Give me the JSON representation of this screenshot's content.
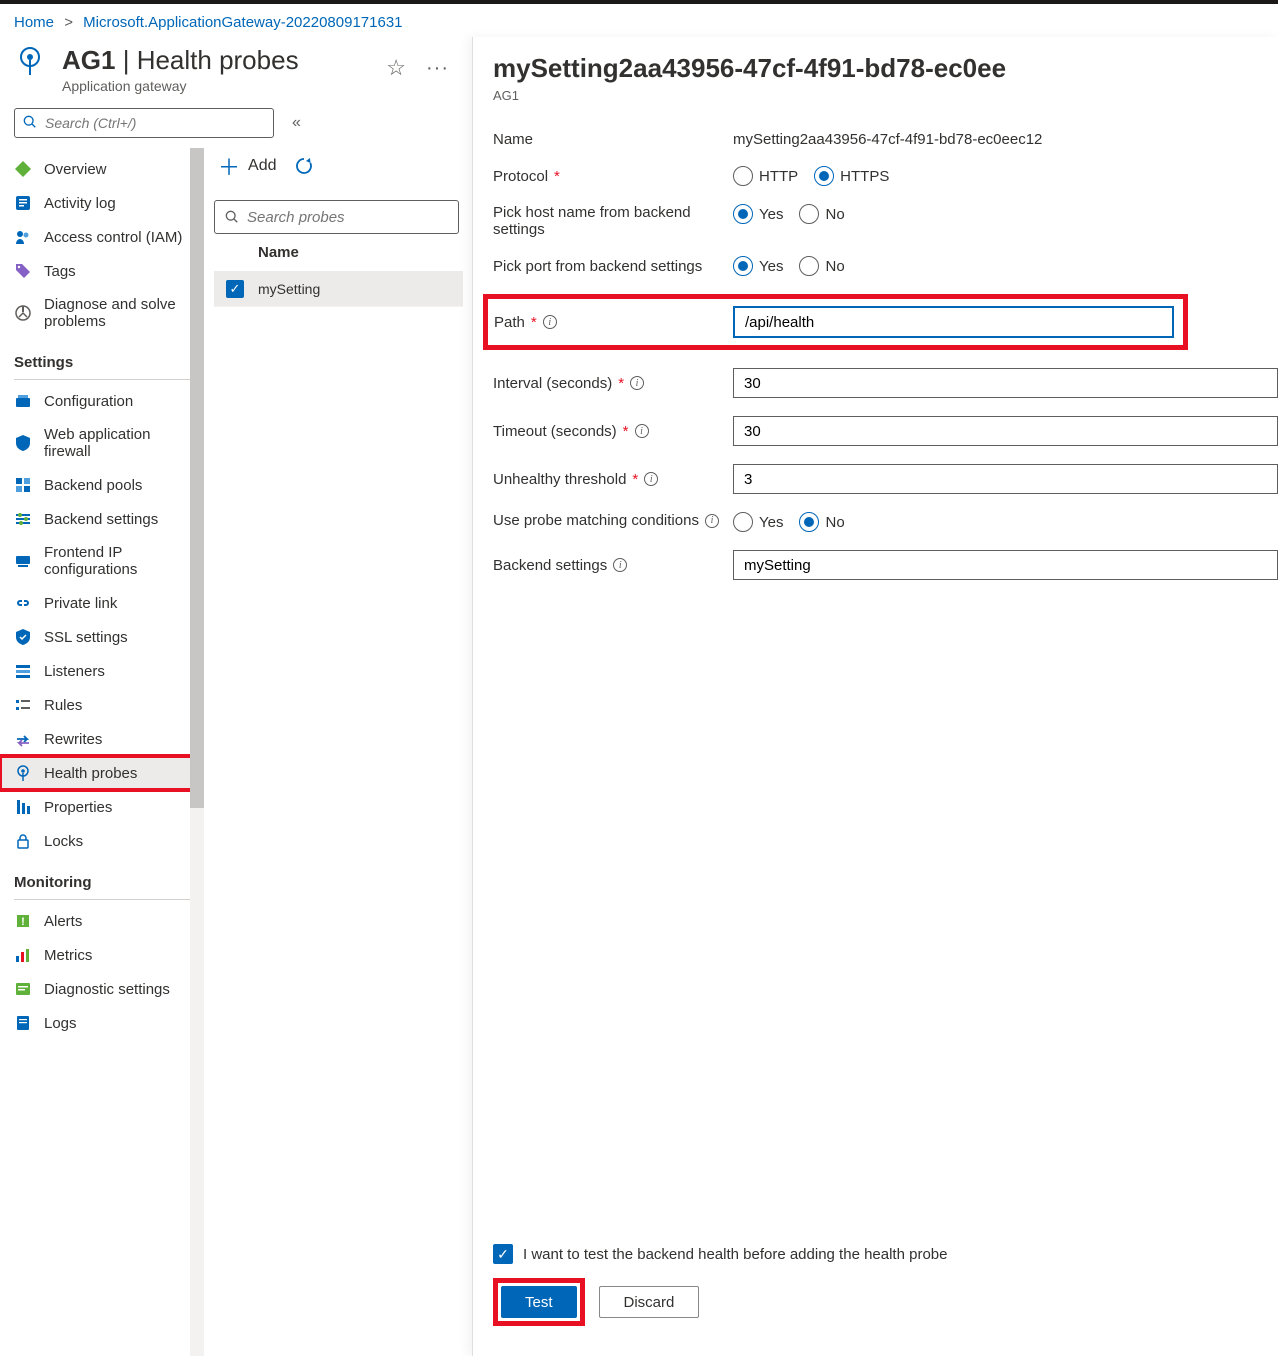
{
  "colors": {
    "link": "#0067b8",
    "text": "#323130",
    "muted": "#605e5c",
    "danger": "#e81123",
    "highlight_border": "#e81123",
    "selected_bg": "#edebe9"
  },
  "breadcrumb": {
    "home": "Home",
    "item1": "Microsoft.ApplicationGateway-20220809171631"
  },
  "header": {
    "resource_name": "AG1",
    "section": "Health probes",
    "subtitle": "Application gateway"
  },
  "nav_search": {
    "placeholder": "Search (Ctrl+/)"
  },
  "sidebar": {
    "items_top": [
      {
        "label": "Overview",
        "icon": "overview"
      },
      {
        "label": "Activity log",
        "icon": "activity-log"
      },
      {
        "label": "Access control (IAM)",
        "icon": "iam"
      },
      {
        "label": "Tags",
        "icon": "tags"
      },
      {
        "label": "Diagnose and solve problems",
        "icon": "diagnose"
      }
    ],
    "section_settings": "Settings",
    "items_settings": [
      {
        "label": "Configuration",
        "icon": "configuration"
      },
      {
        "label": "Web application firewall",
        "icon": "waf"
      },
      {
        "label": "Backend pools",
        "icon": "backend-pools"
      },
      {
        "label": "Backend settings",
        "icon": "backend-settings"
      },
      {
        "label": "Frontend IP configurations",
        "icon": "frontend-ip"
      },
      {
        "label": "Private link",
        "icon": "private-link"
      },
      {
        "label": "SSL settings",
        "icon": "ssl"
      },
      {
        "label": "Listeners",
        "icon": "listeners"
      },
      {
        "label": "Rules",
        "icon": "rules"
      },
      {
        "label": "Rewrites",
        "icon": "rewrites"
      },
      {
        "label": "Health probes",
        "icon": "health-probes",
        "selected": true,
        "highlighted": true
      },
      {
        "label": "Properties",
        "icon": "properties"
      },
      {
        "label": "Locks",
        "icon": "locks"
      }
    ],
    "section_monitoring": "Monitoring",
    "items_monitoring": [
      {
        "label": "Alerts",
        "icon": "alerts"
      },
      {
        "label": "Metrics",
        "icon": "metrics"
      },
      {
        "label": "Diagnostic settings",
        "icon": "diag-settings"
      },
      {
        "label": "Logs",
        "icon": "logs"
      }
    ]
  },
  "toolbar": {
    "add": "Add"
  },
  "mid_search": {
    "placeholder": "Search probes"
  },
  "table": {
    "col_name": "Name",
    "row0": "mySetting"
  },
  "blade": {
    "title": "mySetting2aa43956-47cf-4f91-bd78-ec0ee",
    "crumb": "AG1",
    "labels": {
      "name": "Name",
      "protocol": "Protocol",
      "pick_host": "Pick host name from backend settings",
      "pick_port": "Pick port from backend settings",
      "path": "Path",
      "interval": "Interval (seconds)",
      "timeout": "Timeout (seconds)",
      "threshold": "Unhealthy threshold",
      "matching": "Use probe matching conditions",
      "backend": "Backend settings"
    },
    "values": {
      "name": "mySetting2aa43956-47cf-4f91-bd78-ec0eec12",
      "path": "/api/health",
      "interval": "30",
      "timeout": "30",
      "threshold": "3",
      "backend": "mySetting"
    },
    "radios": {
      "http": "HTTP",
      "https": "HTTPS",
      "yes": "Yes",
      "no": "No",
      "protocol_selected": "https",
      "pick_host_selected": "yes",
      "pick_port_selected": "yes",
      "matching_selected": "no"
    },
    "footer": {
      "checkbox_label": "I want to test the backend health before adding the health probe",
      "test": "Test",
      "discard": "Discard"
    }
  }
}
